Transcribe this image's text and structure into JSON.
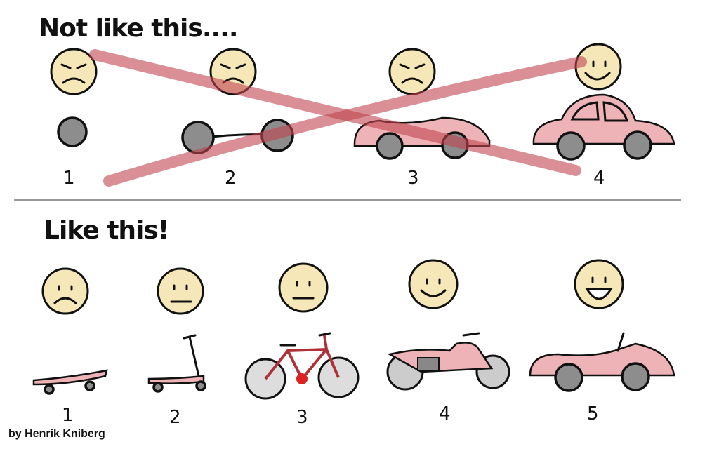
{
  "top_section": {
    "title": "Not like this....",
    "steps": [
      {
        "number": "1",
        "object": "wheel",
        "face": "angry"
      },
      {
        "number": "2",
        "object": "axle with two wheels",
        "face": "angry"
      },
      {
        "number": "3",
        "object": "car body with wheels",
        "face": "angry"
      },
      {
        "number": "4",
        "object": "car",
        "face": "happy"
      }
    ],
    "cross_color": "#c0454f"
  },
  "bottom_section": {
    "title": "Like this!",
    "steps": [
      {
        "number": "1",
        "object": "skateboard",
        "face": "sad"
      },
      {
        "number": "2",
        "object": "scooter",
        "face": "neutral"
      },
      {
        "number": "3",
        "object": "bicycle",
        "face": "neutral"
      },
      {
        "number": "4",
        "object": "motorcycle",
        "face": "smile"
      },
      {
        "number": "5",
        "object": "convertible car",
        "face": "big-smile"
      }
    ]
  },
  "credit": "by Henrik Kniberg",
  "colors": {
    "face": "#f6e7b9",
    "vehicle": "#eeb3b6",
    "wheel": "#8d8d8d"
  }
}
